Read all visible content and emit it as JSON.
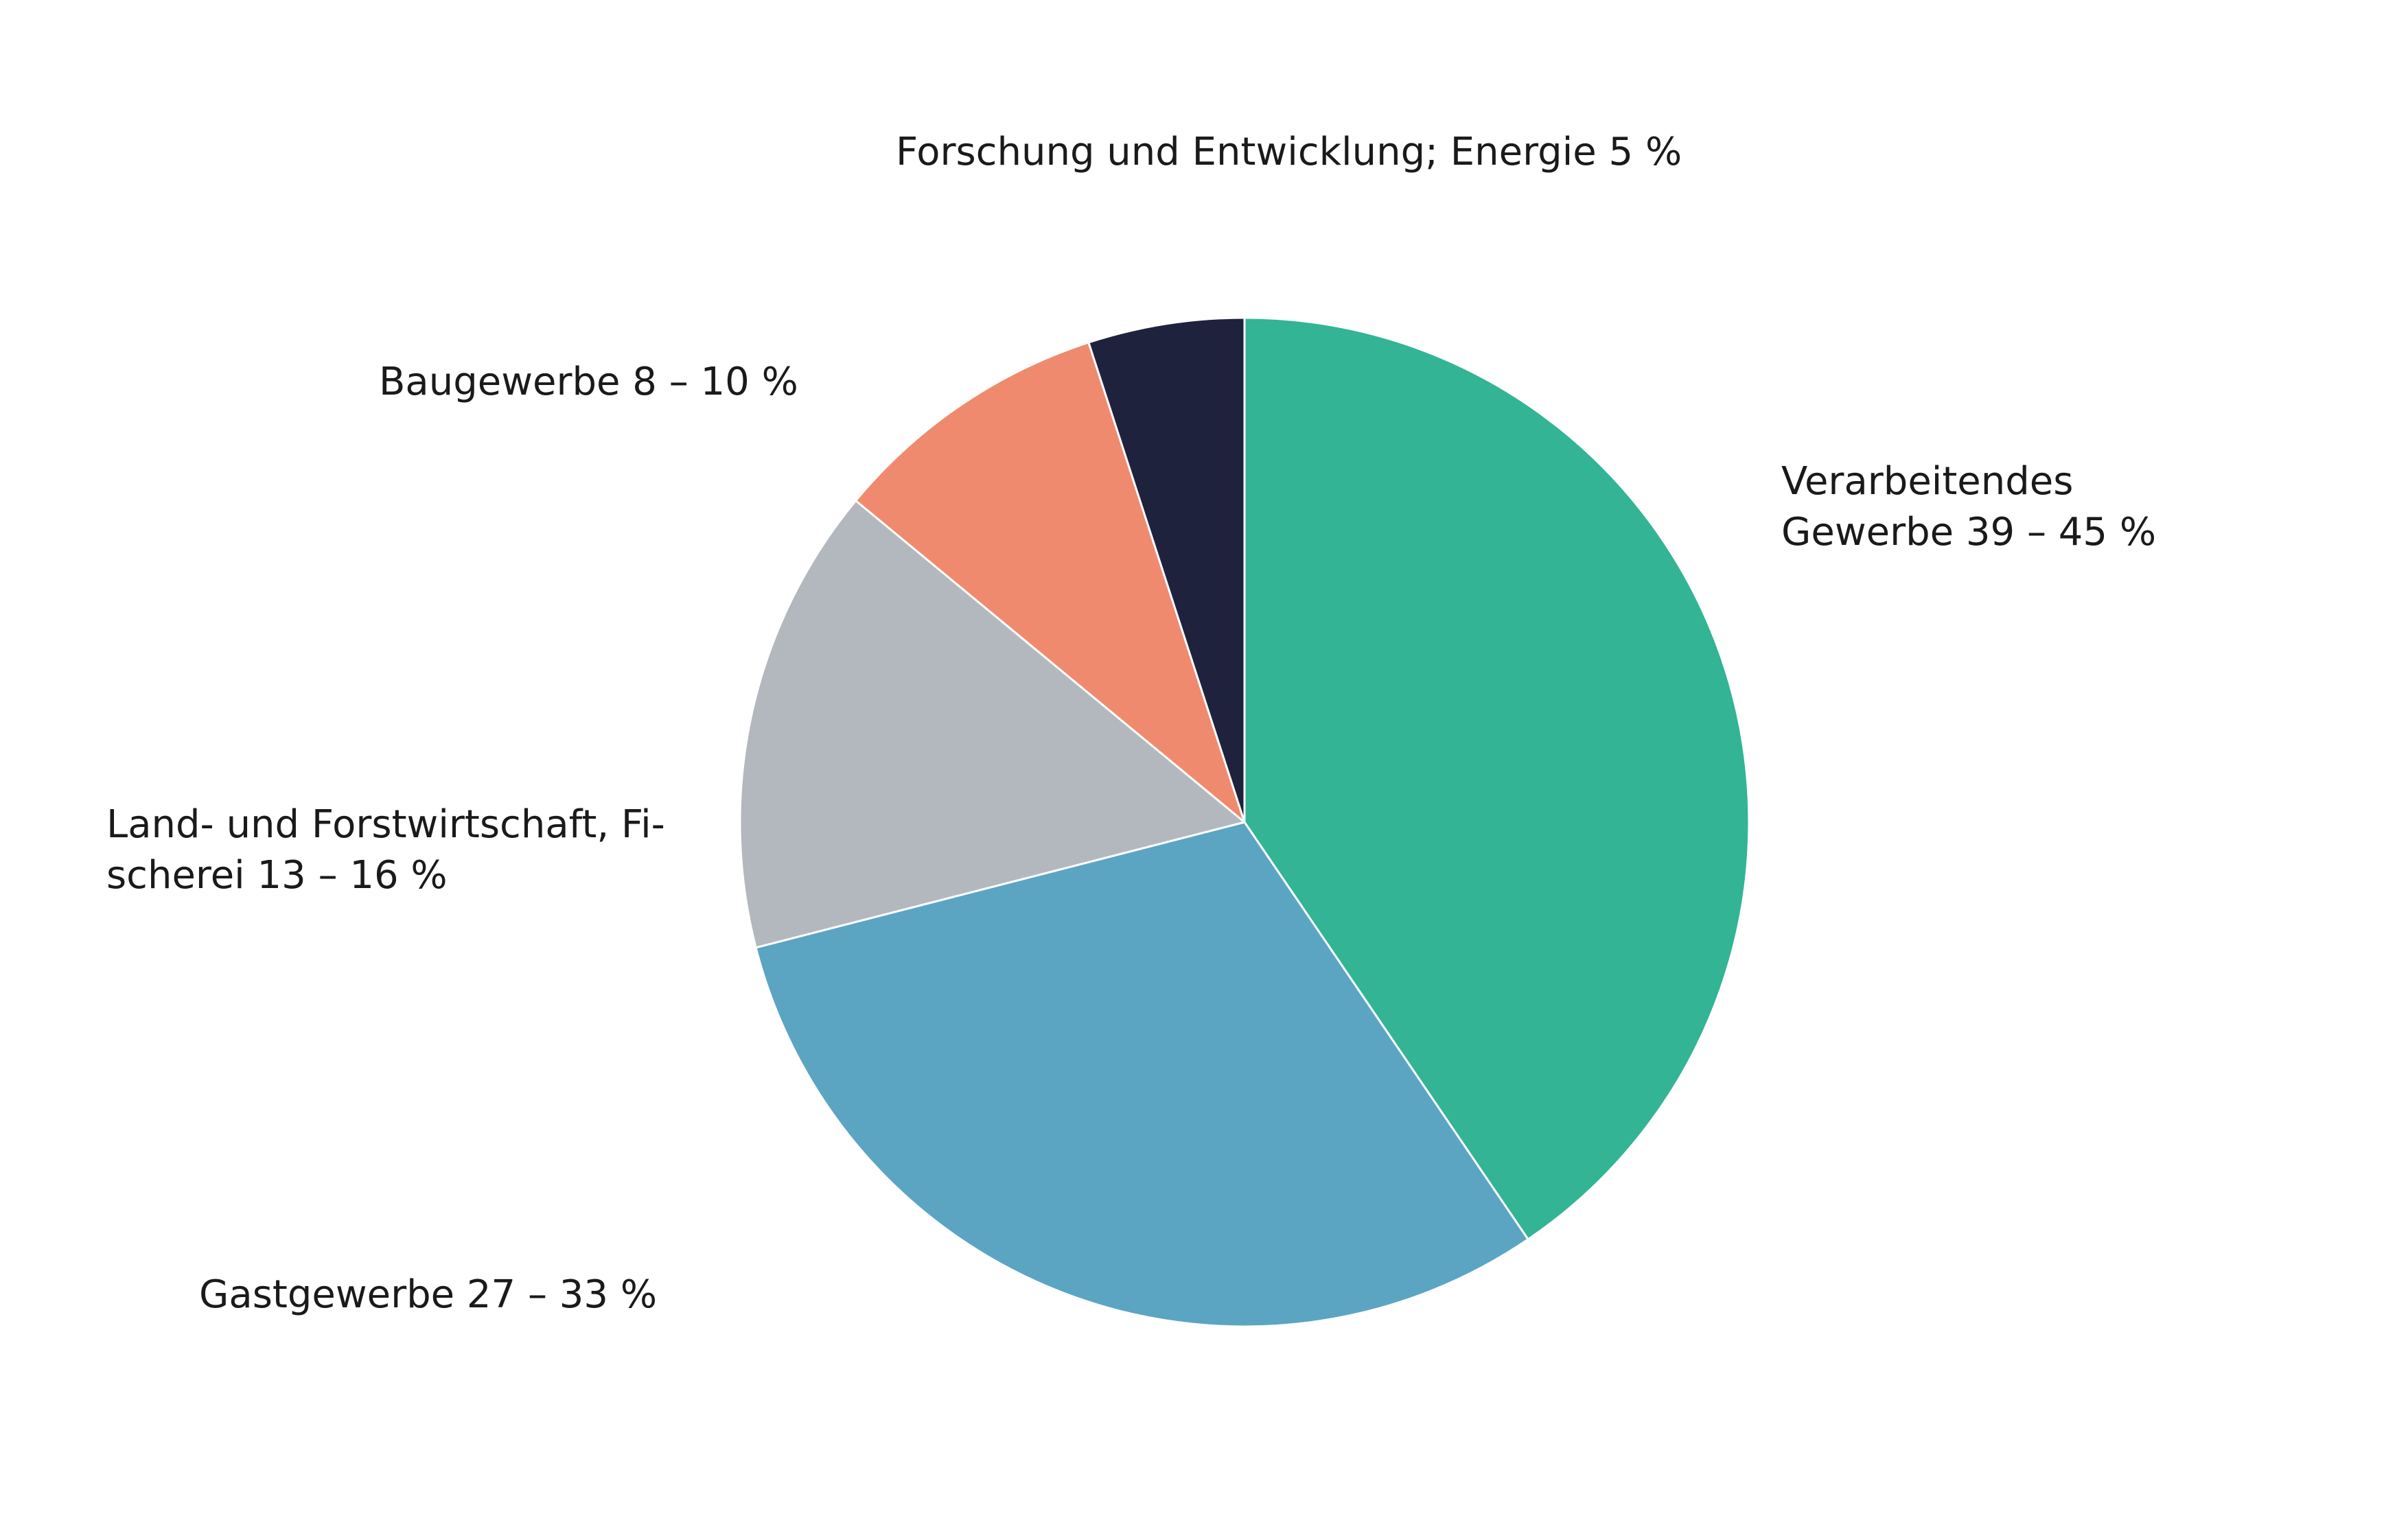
{
  "chart_data": {
    "type": "pie",
    "title": "",
    "start_angle_deg": 0,
    "direction": "clockwise",
    "slices": [
      {
        "name": "Verarbeitendes Gewerbe",
        "label_lines": [
          "Verarbeitendes",
          "Gewerbe 39 – 45 %"
        ],
        "value": 40.5,
        "color": "#32b495"
      },
      {
        "name": "Gastgewerbe",
        "label_lines": [
          "Gastgewerbe 27 – 33 %"
        ],
        "value": 30.5,
        "color": "#5ba5c2"
      },
      {
        "name": "Land- und Forstwirtschaft, Fischerei",
        "label_lines": [
          "Land- und Forstwirtschaft, Fi-",
          "scherei 13 – 16 %"
        ],
        "value": 15,
        "color": "#b2b8bd"
      },
      {
        "name": "Baugewerbe",
        "label_lines": [
          "Baugewerbe 8 – 10 %"
        ],
        "value": 9,
        "color": "#f08a6e"
      },
      {
        "name": "Forschung und Entwicklung; Energie",
        "label_lines": [
          "Forschung und Entwicklung; Energie 5 %"
        ],
        "value": 5,
        "color": "#1f223d"
      }
    ]
  }
}
